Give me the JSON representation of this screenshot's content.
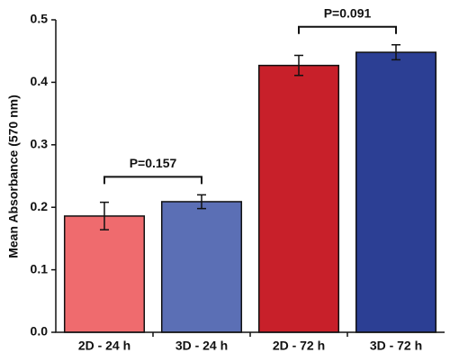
{
  "chart_data": {
    "type": "bar",
    "y_label": "Mean Absorbance (570 nm)",
    "categories": [
      "2D - 24 h",
      "3D - 24 h",
      "2D - 72 h",
      "3D - 72 h"
    ],
    "values": [
      0.186,
      0.209,
      0.427,
      0.448
    ],
    "errors": [
      0.022,
      0.011,
      0.016,
      0.012
    ],
    "colors": [
      "#ef6b6e",
      "#5b6fb5",
      "#c8202a",
      "#2c3f94"
    ],
    "ylim": [
      0,
      0.5
    ],
    "yticks": [
      {
        "value": 0,
        "label": "0.0"
      },
      0.1,
      0.2,
      0.3,
      0.4,
      0.5
    ],
    "annotations": [
      {
        "text": "P=0.157",
        "between": [
          0,
          1
        ]
      },
      {
        "text": "P=0.091",
        "between": [
          2,
          3
        ]
      }
    ]
  }
}
